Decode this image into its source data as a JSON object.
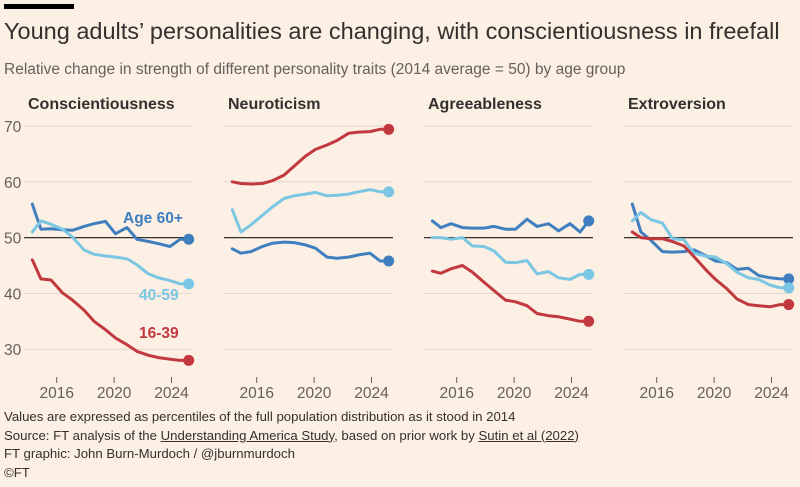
{
  "header": {
    "title": "Young adults’ personalities are changing, with conscientiousness in freefall",
    "subtitle": "Relative change in strength of different personality traits (2014 average = 50) by age group"
  },
  "colors": {
    "background": "#fcefe3",
    "gridline": "#e1d5c9",
    "baseline": "#33302e",
    "age_60_plus": "#3f7fc0",
    "age_40_59": "#7bc6e3",
    "age_16_39": "#c1383f"
  },
  "chart_data": [
    {
      "type": "line",
      "title": "Conscientiousness",
      "ylim": [
        25,
        72
      ],
      "xlim": [
        2014,
        2025.5
      ],
      "yticks": [
        30,
        40,
        50,
        60,
        70
      ],
      "xticks": [
        2016,
        2020,
        2024
      ],
      "baseline": 50,
      "series": [
        {
          "name": "Age 60+",
          "color": "#3f7fc0",
          "x": [
            2014.3,
            2014.9,
            2015.6,
            2016.4,
            2017.1,
            2017.9,
            2018.6,
            2019.4,
            2020.1,
            2020.9,
            2021.6,
            2022.4,
            2023.1,
            2023.9,
            2024.6,
            2025.2
          ],
          "y": [
            56,
            51.5,
            51.6,
            51.4,
            51.3,
            52,
            52.5,
            52.9,
            50.7,
            51.8,
            49.7,
            49.3,
            48.9,
            48.4,
            49.7,
            49.7
          ]
        },
        {
          "name": "40-59",
          "color": "#7bc6e3",
          "x": [
            2014.3,
            2014.9,
            2015.6,
            2016.4,
            2017.1,
            2017.9,
            2018.6,
            2019.4,
            2020.1,
            2020.9,
            2021.6,
            2022.4,
            2023.1,
            2023.9,
            2024.6,
            2025.2
          ],
          "y": [
            51,
            53,
            52.4,
            51.5,
            50.1,
            47.8,
            47,
            46.7,
            46.5,
            46.2,
            45.1,
            43.5,
            42.8,
            42.3,
            41.7,
            41.7
          ]
        },
        {
          "name": "16-39",
          "color": "#c1383f",
          "x": [
            2014.3,
            2014.9,
            2015.6,
            2016.4,
            2017.1,
            2017.9,
            2018.6,
            2019.4,
            2020.1,
            2020.9,
            2021.6,
            2022.4,
            2023.1,
            2023.9,
            2024.6,
            2025.2
          ],
          "y": [
            46,
            42.6,
            42.4,
            40.1,
            38.8,
            37,
            35,
            33.5,
            32,
            30.8,
            29.6,
            28.9,
            28.5,
            28.2,
            28,
            28
          ]
        }
      ],
      "annotations": [
        {
          "text": "Age 60+",
          "series": "Age 60+"
        },
        {
          "text": "40-59",
          "series": "40-59"
        },
        {
          "text": "16-39",
          "series": "16-39"
        }
      ]
    },
    {
      "type": "line",
      "title": "Neuroticism",
      "ylim": [
        25,
        72
      ],
      "xlim": [
        2014,
        2025.5
      ],
      "yticks": [
        30,
        40,
        50,
        60,
        70
      ],
      "xticks": [
        2016,
        2020,
        2024
      ],
      "baseline": 50,
      "series": [
        {
          "name": "Age 60+",
          "color": "#3f7fc0",
          "x": [
            2014.3,
            2014.9,
            2015.6,
            2016.4,
            2017.1,
            2017.9,
            2018.6,
            2019.4,
            2020.1,
            2020.9,
            2021.6,
            2022.4,
            2023.1,
            2023.9,
            2024.6,
            2025.2
          ],
          "y": [
            48,
            47.2,
            47.5,
            48.4,
            49,
            49.2,
            49.1,
            48.7,
            48.1,
            46.5,
            46.3,
            46.5,
            46.9,
            47.2,
            45.8,
            45.8
          ]
        },
        {
          "name": "40-59",
          "color": "#7bc6e3",
          "x": [
            2014.3,
            2014.9,
            2015.6,
            2016.4,
            2017.1,
            2017.9,
            2018.6,
            2019.4,
            2020.1,
            2020.9,
            2021.6,
            2022.4,
            2023.1,
            2023.9,
            2024.6,
            2025.2
          ],
          "y": [
            55,
            51,
            52.3,
            54,
            55.5,
            57,
            57.5,
            57.8,
            58.1,
            57.5,
            57.6,
            57.8,
            58.2,
            58.6,
            58.2,
            58.2
          ]
        },
        {
          "name": "16-39",
          "color": "#c1383f",
          "x": [
            2014.3,
            2014.9,
            2015.6,
            2016.4,
            2017.1,
            2017.9,
            2018.6,
            2019.4,
            2020.1,
            2020.9,
            2021.6,
            2022.4,
            2023.1,
            2023.9,
            2024.6,
            2025.2
          ],
          "y": [
            60,
            59.7,
            59.6,
            59.7,
            60.2,
            61.2,
            62.8,
            64.6,
            65.8,
            66.6,
            67.4,
            68.7,
            68.9,
            69,
            69.4,
            69.4
          ]
        }
      ]
    },
    {
      "type": "line",
      "title": "Agreeableness",
      "ylim": [
        25,
        72
      ],
      "xlim": [
        2014,
        2025.5
      ],
      "yticks": [
        30,
        40,
        50,
        60,
        70
      ],
      "xticks": [
        2016,
        2020,
        2024
      ],
      "baseline": 50,
      "series": [
        {
          "name": "Age 60+",
          "color": "#3f7fc0",
          "x": [
            2014.3,
            2014.9,
            2015.6,
            2016.4,
            2017.1,
            2017.9,
            2018.6,
            2019.4,
            2020.1,
            2020.9,
            2021.6,
            2022.4,
            2023.1,
            2023.9,
            2024.6,
            2025.2
          ],
          "y": [
            53,
            51.8,
            52.5,
            51.8,
            51.7,
            51.7,
            52,
            51.5,
            51.5,
            53.3,
            52,
            52.5,
            51.2,
            52.5,
            51,
            53
          ]
        },
        {
          "name": "40-59",
          "color": "#7bc6e3",
          "x": [
            2014.3,
            2014.9,
            2015.6,
            2016.4,
            2017.1,
            2017.9,
            2018.6,
            2019.4,
            2020.1,
            2020.9,
            2021.6,
            2022.4,
            2023.1,
            2023.9,
            2024.6,
            2025.2
          ],
          "y": [
            50,
            50,
            49.7,
            50,
            48.5,
            48.4,
            47.6,
            45.6,
            45.5,
            45.9,
            43.5,
            43.9,
            42.8,
            42.5,
            43.4,
            43.4
          ]
        },
        {
          "name": "16-39",
          "color": "#c1383f",
          "x": [
            2014.3,
            2014.9,
            2015.6,
            2016.4,
            2017.1,
            2017.9,
            2018.6,
            2019.4,
            2020.1,
            2020.9,
            2021.6,
            2022.4,
            2023.1,
            2023.9,
            2024.6,
            2025.2
          ],
          "y": [
            44,
            43.6,
            44.4,
            45,
            43.8,
            42,
            40.5,
            38.8,
            38.5,
            37.8,
            36.4,
            36,
            35.8,
            35.4,
            35,
            35
          ]
        }
      ]
    },
    {
      "type": "line",
      "title": "Extroversion",
      "ylim": [
        25,
        72
      ],
      "xlim": [
        2014,
        2025.5
      ],
      "yticks": [
        30,
        40,
        50,
        60,
        70
      ],
      "xticks": [
        2016,
        2020,
        2024
      ],
      "baseline": 50,
      "series": [
        {
          "name": "Age 60+",
          "color": "#3f7fc0",
          "x": [
            2014.3,
            2014.9,
            2015.6,
            2016.4,
            2017.1,
            2017.9,
            2018.6,
            2019.4,
            2020.1,
            2020.9,
            2021.6,
            2022.4,
            2023.1,
            2023.9,
            2024.6,
            2025.2
          ],
          "y": [
            56,
            51,
            49.5,
            47.5,
            47.4,
            47.5,
            47.8,
            46.8,
            45.8,
            45.5,
            44.3,
            44.5,
            43.2,
            42.8,
            42.6,
            42.6
          ]
        },
        {
          "name": "40-59",
          "color": "#7bc6e3",
          "x": [
            2014.3,
            2014.9,
            2015.6,
            2016.4,
            2017.1,
            2017.9,
            2018.6,
            2019.4,
            2020.1,
            2020.9,
            2021.6,
            2022.4,
            2023.1,
            2023.9,
            2024.6,
            2025.2
          ],
          "y": [
            53,
            54.5,
            53.2,
            52.6,
            49.8,
            49.6,
            47.2,
            46.7,
            46.5,
            45.3,
            43.8,
            42.8,
            42.5,
            41.5,
            41,
            41
          ]
        },
        {
          "name": "16-39",
          "color": "#c1383f",
          "x": [
            2014.3,
            2014.9,
            2015.6,
            2016.4,
            2017.1,
            2017.9,
            2018.6,
            2019.4,
            2020.1,
            2020.9,
            2021.6,
            2022.4,
            2023.1,
            2023.9,
            2024.6,
            2025.2
          ],
          "y": [
            51,
            50,
            49.8,
            49.8,
            49.3,
            48.5,
            46.6,
            44.3,
            42.5,
            40.8,
            39,
            38,
            37.8,
            37.6,
            38,
            38
          ]
        }
      ]
    }
  ],
  "footer": {
    "note": "Values are expressed as percentiles of the full population distribution as it stood in 2014",
    "source_prefix": "Source: FT analysis of the ",
    "source_link1": "Understanding America Study",
    "source_mid": ", based on prior work by ",
    "source_link2": "Sutin et al (2022)",
    "graphic": "FT graphic: John Burn-Murdoch / @jburnmurdoch",
    "copyright": "©FT"
  }
}
